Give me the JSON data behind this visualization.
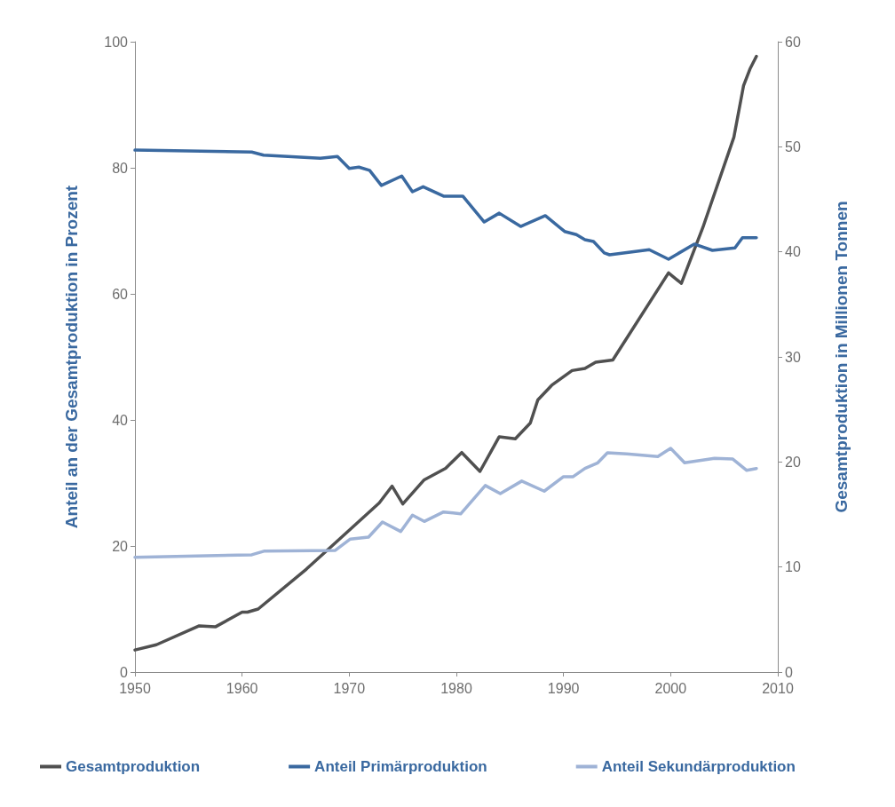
{
  "chart_data": {
    "type": "line",
    "ylabel": "Anteil an der Gesamtproduktion in Prozent",
    "y2label": "Gesamtproduktion in Millionen Tonnen",
    "xlim": [
      1950,
      2010
    ],
    "xticks": [
      1950,
      1960,
      1970,
      1980,
      1990,
      2000,
      2010
    ],
    "ylim": [
      0,
      100
    ],
    "yticks": [
      0,
      20,
      40,
      60,
      80,
      100
    ],
    "y2lim": [
      0,
      60
    ],
    "y2ticks": [
      0,
      10,
      20,
      30,
      40,
      50,
      60
    ],
    "grid": false,
    "legend": "bottom",
    "marker": "none",
    "line_style": "solid",
    "series": [
      {
        "name": "Gesamtproduktion",
        "color": "#505050",
        "axis": "y2",
        "x": [
          1950,
          1952,
          1956,
          1957.5,
          1960,
          1960.5,
          1961.5,
          1966,
          1968.7,
          1972.8,
          1974,
          1975,
          1977,
          1979,
          1980.5,
          1982.2,
          1984,
          1985.5,
          1986.9,
          1987.6,
          1988.9,
          1990.8,
          1992,
          1993,
          1994.6,
          1999.8,
          2001,
          2003,
          2005.9,
          2006.8,
          2007.4,
          2008
        ],
        "values": [
          2.1,
          2.6,
          4.4,
          4.3,
          5.7,
          5.7,
          6.0,
          9.8,
          12.3,
          16.1,
          17.7,
          16.0,
          18.3,
          19.4,
          20.9,
          19.1,
          22.4,
          22.2,
          23.7,
          25.9,
          27.3,
          28.7,
          28.9,
          29.5,
          29.7,
          38.0,
          37.0,
          42.3,
          50.9,
          55.8,
          57.4,
          58.6
        ]
      },
      {
        "name": "Anteil Primärproduktion",
        "color": "#3a69a0",
        "x": [
          1950,
          1960.9,
          1962,
          1967.3,
          1968.9,
          1970,
          1970.9,
          1971.9,
          1973,
          1974.9,
          1975.9,
          1976.9,
          1978.8,
          1980.6,
          1982.6,
          1984,
          1986,
          1988.3,
          1990.1,
          1991.2,
          1992,
          1992.8,
          1993.8,
          1994.3,
          1998,
          1999.8,
          2002.2,
          2003.9,
          2006,
          2006.7,
          2008
        ],
        "values": [
          82.8,
          82.5,
          82.0,
          81.5,
          81.8,
          79.9,
          80.1,
          79.6,
          77.2,
          78.7,
          76.2,
          77.0,
          75.5,
          75.5,
          71.4,
          72.8,
          70.7,
          72.4,
          69.9,
          69.4,
          68.6,
          68.3,
          66.5,
          66.2,
          67.0,
          65.5,
          67.9,
          66.9,
          67.3,
          68.9,
          68.9
        ]
      },
      {
        "name": "Anteil Sekundärproduktion",
        "color": "#9fb3d6",
        "x": [
          1950,
          1960.9,
          1962.1,
          1968.7,
          1970.1,
          1971.8,
          1973.1,
          1974.8,
          1975.9,
          1977,
          1978.8,
          1980.4,
          1982.7,
          1984.1,
          1986.1,
          1988.2,
          1990,
          1990.9,
          1992,
          1993.2,
          1994.1,
          1995.9,
          1998.8,
          2000,
          2001.3,
          2004.1,
          2005.8,
          2007.1,
          2008
        ],
        "values": [
          18.2,
          18.6,
          19.2,
          19.3,
          21.1,
          21.4,
          23.8,
          22.3,
          24.9,
          23.9,
          25.4,
          25.1,
          29.6,
          28.3,
          30.3,
          28.7,
          31.0,
          31.0,
          32.3,
          33.2,
          34.8,
          34.6,
          34.2,
          35.5,
          33.2,
          33.9,
          33.8,
          32.0,
          32.3
        ]
      }
    ]
  }
}
